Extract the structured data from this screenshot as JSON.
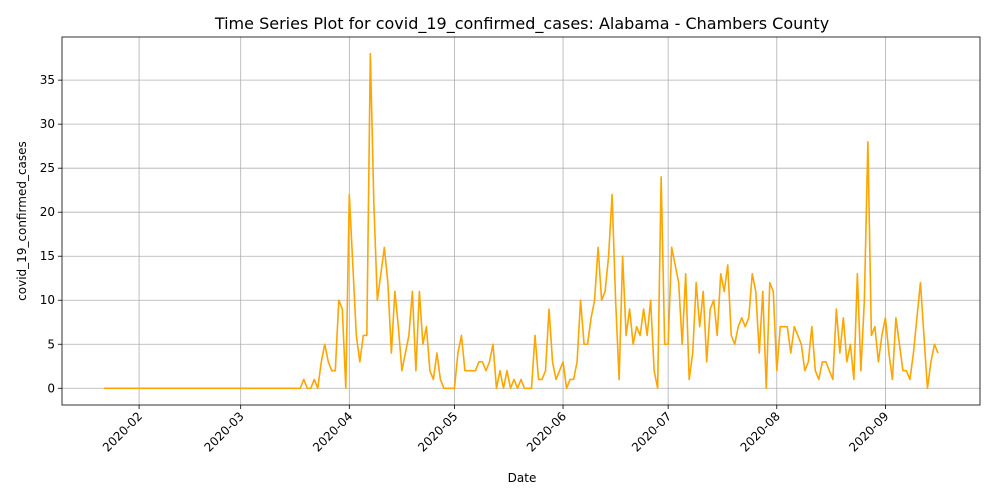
{
  "chart_data": {
    "type": "line",
    "title": "Time Series Plot for covid_19_confirmed_cases: Alabama - Chambers County",
    "x_label": "Date",
    "y_label": "covid_19_confirmed_cases",
    "color": "#ffa500",
    "grid": true,
    "x": [
      "2020-01-22",
      "2020-01-23",
      "2020-01-24",
      "2020-01-25",
      "2020-01-26",
      "2020-01-27",
      "2020-01-28",
      "2020-01-29",
      "2020-01-30",
      "2020-01-31",
      "2020-02-01",
      "2020-02-02",
      "2020-02-03",
      "2020-02-04",
      "2020-02-05",
      "2020-02-06",
      "2020-02-07",
      "2020-02-08",
      "2020-02-09",
      "2020-02-10",
      "2020-02-11",
      "2020-02-12",
      "2020-02-13",
      "2020-02-14",
      "2020-02-15",
      "2020-02-16",
      "2020-02-17",
      "2020-02-18",
      "2020-02-19",
      "2020-02-20",
      "2020-02-21",
      "2020-02-22",
      "2020-02-23",
      "2020-02-24",
      "2020-02-25",
      "2020-02-26",
      "2020-02-27",
      "2020-02-28",
      "2020-02-29",
      "2020-03-01",
      "2020-03-02",
      "2020-03-03",
      "2020-03-04",
      "2020-03-05",
      "2020-03-06",
      "2020-03-07",
      "2020-03-08",
      "2020-03-09",
      "2020-03-10",
      "2020-03-11",
      "2020-03-12",
      "2020-03-13",
      "2020-03-14",
      "2020-03-15",
      "2020-03-16",
      "2020-03-17",
      "2020-03-18",
      "2020-03-19",
      "2020-03-20",
      "2020-03-21",
      "2020-03-22",
      "2020-03-23",
      "2020-03-24",
      "2020-03-25",
      "2020-03-26",
      "2020-03-27",
      "2020-03-28",
      "2020-03-29",
      "2020-03-30",
      "2020-03-31",
      "2020-04-01",
      "2020-04-02",
      "2020-04-03",
      "2020-04-04",
      "2020-04-05",
      "2020-04-06",
      "2020-04-07",
      "2020-04-08",
      "2020-04-09",
      "2020-04-10",
      "2020-04-11",
      "2020-04-12",
      "2020-04-13",
      "2020-04-14",
      "2020-04-15",
      "2020-04-16",
      "2020-04-17",
      "2020-04-18",
      "2020-04-19",
      "2020-04-20",
      "2020-04-21",
      "2020-04-22",
      "2020-04-23",
      "2020-04-24",
      "2020-04-25",
      "2020-04-26",
      "2020-04-27",
      "2020-04-28",
      "2020-04-29",
      "2020-04-30",
      "2020-05-01",
      "2020-05-02",
      "2020-05-03",
      "2020-05-04",
      "2020-05-05",
      "2020-05-06",
      "2020-05-07",
      "2020-05-08",
      "2020-05-09",
      "2020-05-10",
      "2020-05-11",
      "2020-05-12",
      "2020-05-13",
      "2020-05-14",
      "2020-05-15",
      "2020-05-16",
      "2020-05-17",
      "2020-05-18",
      "2020-05-19",
      "2020-05-20",
      "2020-05-21",
      "2020-05-22",
      "2020-05-23",
      "2020-05-24",
      "2020-05-25",
      "2020-05-26",
      "2020-05-27",
      "2020-05-28",
      "2020-05-29",
      "2020-05-30",
      "2020-05-31",
      "2020-06-01",
      "2020-06-02",
      "2020-06-03",
      "2020-06-04",
      "2020-06-05",
      "2020-06-06",
      "2020-06-07",
      "2020-06-08",
      "2020-06-09",
      "2020-06-10",
      "2020-06-11",
      "2020-06-12",
      "2020-06-13",
      "2020-06-14",
      "2020-06-15",
      "2020-06-16",
      "2020-06-17",
      "2020-06-18",
      "2020-06-19",
      "2020-06-20",
      "2020-06-21",
      "2020-06-22",
      "2020-06-23",
      "2020-06-24",
      "2020-06-25",
      "2020-06-26",
      "2020-06-27",
      "2020-06-28",
      "2020-06-29",
      "2020-06-30",
      "2020-07-01",
      "2020-07-02",
      "2020-07-03",
      "2020-07-04",
      "2020-07-05",
      "2020-07-06",
      "2020-07-07",
      "2020-07-08",
      "2020-07-09",
      "2020-07-10",
      "2020-07-11",
      "2020-07-12",
      "2020-07-13",
      "2020-07-14",
      "2020-07-15",
      "2020-07-16",
      "2020-07-17",
      "2020-07-18",
      "2020-07-19",
      "2020-07-20",
      "2020-07-21",
      "2020-07-22",
      "2020-07-23",
      "2020-07-24",
      "2020-07-25",
      "2020-07-26",
      "2020-07-27",
      "2020-07-28",
      "2020-07-29",
      "2020-07-30",
      "2020-07-31",
      "2020-08-01",
      "2020-08-02",
      "2020-08-03",
      "2020-08-04",
      "2020-08-05",
      "2020-08-06",
      "2020-08-07",
      "2020-08-08",
      "2020-08-09",
      "2020-08-10",
      "2020-08-11",
      "2020-08-12",
      "2020-08-13",
      "2020-08-14",
      "2020-08-15",
      "2020-08-16",
      "2020-08-17",
      "2020-08-18",
      "2020-08-19",
      "2020-08-20",
      "2020-08-21",
      "2020-08-22",
      "2020-08-23",
      "2020-08-24",
      "2020-08-25",
      "2020-08-26",
      "2020-08-27",
      "2020-08-28",
      "2020-08-29",
      "2020-08-30",
      "2020-08-31",
      "2020-09-01",
      "2020-09-02",
      "2020-09-03",
      "2020-09-04",
      "2020-09-05",
      "2020-09-06",
      "2020-09-07",
      "2020-09-08",
      "2020-09-09",
      "2020-09-10",
      "2020-09-11",
      "2020-09-12",
      "2020-09-13",
      "2020-09-14",
      "2020-09-15",
      "2020-09-16"
    ],
    "values": [
      0,
      0,
      0,
      0,
      0,
      0,
      0,
      0,
      0,
      0,
      0,
      0,
      0,
      0,
      0,
      0,
      0,
      0,
      0,
      0,
      0,
      0,
      0,
      0,
      0,
      0,
      0,
      0,
      0,
      0,
      0,
      0,
      0,
      0,
      0,
      0,
      0,
      0,
      0,
      0,
      0,
      0,
      0,
      0,
      0,
      0,
      0,
      0,
      0,
      0,
      0,
      0,
      0,
      0,
      0,
      0,
      0,
      1,
      0,
      0,
      1,
      0,
      3,
      5,
      3,
      2,
      2,
      10,
      9,
      0,
      22,
      14,
      6,
      3,
      6,
      6,
      38,
      21,
      10,
      13,
      16,
      12,
      4,
      11,
      7,
      2,
      4,
      6,
      11,
      2,
      11,
      5,
      7,
      2,
      1,
      4,
      1,
      0,
      0,
      0,
      0,
      4,
      6,
      2,
      2,
      2,
      2,
      3,
      3,
      2,
      3,
      5,
      0,
      2,
      0,
      2,
      0,
      1,
      0,
      1,
      0,
      0,
      0,
      6,
      1,
      1,
      2,
      9,
      3,
      1,
      2,
      3,
      0,
      1,
      1,
      3,
      10,
      5,
      5,
      8,
      10,
      16,
      10,
      11,
      15,
      22,
      10,
      1,
      15,
      6,
      9,
      5,
      7,
      6,
      9,
      6,
      10,
      2,
      0,
      24,
      5,
      5,
      16,
      14,
      12,
      5,
      13,
      1,
      4,
      12,
      7,
      11,
      3,
      9,
      10,
      6,
      13,
      11,
      14,
      6,
      5,
      7,
      8,
      7,
      8,
      13,
      11,
      4,
      11,
      0,
      12,
      11,
      2,
      7,
      7,
      7,
      4,
      7,
      6,
      5,
      2,
      3,
      7,
      2,
      1,
      3,
      3,
      2,
      1,
      9,
      4,
      8,
      3,
      5,
      1,
      13,
      2,
      10,
      28,
      6,
      7,
      3,
      6,
      8,
      4,
      1,
      8,
      5,
      2,
      2,
      1,
      4,
      8,
      12,
      6,
      0,
      3,
      5,
      4
    ],
    "xlim": [
      "2020-01-10",
      "2020-09-28"
    ],
    "xticks": [
      {
        "value": "2020-02-01",
        "label": "2020-02"
      },
      {
        "value": "2020-03-01",
        "label": "2020-03"
      },
      {
        "value": "2020-04-01",
        "label": "2020-04"
      },
      {
        "value": "2020-05-01",
        "label": "2020-05"
      },
      {
        "value": "2020-06-01",
        "label": "2020-06"
      },
      {
        "value": "2020-07-01",
        "label": "2020-07"
      },
      {
        "value": "2020-08-01",
        "label": "2020-08"
      },
      {
        "value": "2020-09-01",
        "label": "2020-09"
      }
    ],
    "ylim": [
      -1.9,
      39.9
    ],
    "yticks": [
      0,
      5,
      10,
      15,
      20,
      25,
      30,
      35
    ]
  }
}
